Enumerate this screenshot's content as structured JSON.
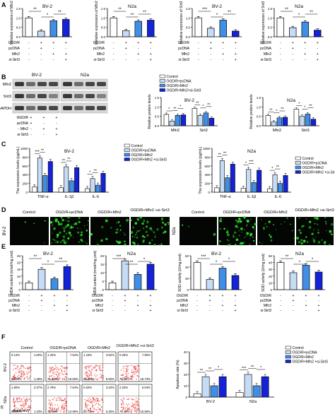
{
  "panel_letters": [
    "A",
    "B",
    "C",
    "D",
    "E",
    "F"
  ],
  "colors": {
    "control": "#ffffff",
    "ogdr_pcdna": "#c6dcf5",
    "ogdr_mfn2": "#3f8fe6",
    "ogdr_mfn2_sisirt3": "#1422d8",
    "stroke": "#000000",
    "microscope_bg": "#030603",
    "fluor_green": "#2ee62e",
    "flow_red": "#e3342f"
  },
  "legend": {
    "items": [
      "Control",
      "OGD/R+pcDNA",
      "OGD/R+Mfn2",
      "OGD/R+Mfn2 +si-Sirt3"
    ]
  },
  "treatment_table": {
    "rows": [
      "OGD/R",
      "pcDNA",
      "Mfn2",
      "si-Sirt3"
    ],
    "signs": [
      [
        "-",
        "+",
        "+",
        "+"
      ],
      [
        "-",
        "+",
        "-",
        "-"
      ],
      [
        "-",
        "-",
        "+",
        "+"
      ],
      [
        "-",
        "-",
        "-",
        "+"
      ]
    ]
  },
  "panelA": {
    "charts": [
      {
        "title": "BV-2",
        "ylabel": "Relative expression of Mfn2",
        "yticks": [
          "0.0",
          "0.5",
          "1.0",
          "1.5"
        ],
        "values": [
          1.0,
          0.3,
          0.85,
          0.92
        ],
        "sig": [
          "**",
          "*",
          "**"
        ]
      },
      {
        "title": "N2a",
        "ylabel": "Relative expression of Mfn2",
        "yticks": [
          "0.0",
          "0.5",
          "1.0",
          "1.5"
        ],
        "values": [
          1.0,
          0.32,
          0.82,
          0.88
        ],
        "sig": [
          "**",
          "**",
          "**"
        ]
      },
      {
        "title": "BV-2",
        "ylabel": "Relative expression of Sirt3",
        "yticks": [
          "0.0",
          "0.5",
          "1.0",
          "1.5"
        ],
        "values": [
          1.0,
          0.45,
          0.88,
          0.3
        ],
        "sig": [
          "***",
          "*",
          "**"
        ]
      },
      {
        "title": "N2a",
        "ylabel": "Relative expression of Sirt3",
        "yticks": [
          "0.0",
          "0.5",
          "1.0",
          "1.5"
        ],
        "values": [
          1.0,
          0.48,
          0.78,
          0.35
        ],
        "sig": [
          "**",
          "*",
          "**"
        ]
      }
    ]
  },
  "panelB": {
    "blot_titles": [
      "BV-2",
      "N2a"
    ],
    "blot_rows": [
      "Mfn2",
      "Sirt3",
      "GAPDH"
    ],
    "legend_items": [
      "Control",
      "OGD/R+pcDNA",
      "OGD/R+Mfn2",
      "OGD/R+Mfn2+si-Sirt3"
    ],
    "charts": [
      {
        "title": "BV-2",
        "ylabel": "Relative protein levels",
        "categories": [
          "Mfn2",
          "Sirt3"
        ],
        "yticks": [
          "0.0",
          "0.5",
          "1.0",
          "1.5"
        ],
        "series": [
          [
            0.6,
            0.92
          ],
          [
            0.25,
            0.55
          ],
          [
            0.55,
            0.68
          ],
          [
            0.58,
            0.4
          ]
        ],
        "sig": [
          "*",
          "**",
          "*",
          "**",
          "*",
          "**"
        ]
      },
      {
        "title": "N2a",
        "ylabel": "Relative protein levels",
        "categories": [
          "Mfn2",
          "Sirt3"
        ],
        "yticks": [
          "0.0",
          "0.5",
          "1.0",
          "1.5"
        ],
        "series": [
          [
            0.55,
            0.88
          ],
          [
            0.2,
            0.5
          ],
          [
            0.42,
            0.62
          ],
          [
            0.45,
            0.35
          ]
        ],
        "sig": [
          "**",
          "*",
          "**",
          "*",
          "*",
          "**"
        ]
      }
    ]
  },
  "panelC": {
    "charts": [
      {
        "title": "BV-2",
        "ylabel": "The expression levels (pg/mL)",
        "categories": [
          "TNF-α",
          "IL-1β",
          "IL-6"
        ],
        "yticks": [
          "0",
          "200",
          "400",
          "600",
          "800",
          "1000"
        ],
        "series": [
          [
            120,
            100,
            80
          ],
          [
            780,
            580,
            310
          ],
          [
            380,
            260,
            160
          ],
          [
            700,
            560,
            430
          ]
        ],
        "sig": [
          "***",
          "**",
          "**",
          "**",
          "*",
          "**"
        ],
        "legend": [
          "Control",
          "OGD/R+pcDNA",
          "OGD/R+Mfn2",
          "OGD/R+Mfn2 +si-Sirt3"
        ]
      },
      {
        "title": "N2a",
        "ylabel": "The expression levels (pg/mL)",
        "categories": [
          "TNF-α",
          "IL-1β",
          "IL-6"
        ],
        "yticks": [
          "0",
          "200",
          "400",
          "600",
          "800",
          "1000"
        ],
        "series": [
          [
            100,
            90,
            80
          ],
          [
            720,
            520,
            400
          ],
          [
            330,
            220,
            200
          ],
          [
            640,
            500,
            380
          ]
        ],
        "sig": [
          "**",
          "**",
          "*",
          "***",
          "*",
          "**"
        ],
        "legend": [
          "Control",
          "OGD/R+pcDNA",
          "OGD/R+Mfn2",
          "OGD/R+Mfn2 +si-Sirt3"
        ]
      }
    ]
  },
  "panelD": {
    "labels_left": [
      "Control",
      "OGD/R+pcDNA",
      "OGD/R+Mfn2",
      "OGD/R+Mfn2 +si-Sirt3"
    ],
    "labels_right": [
      "Control",
      "OGD/R+pcDNA",
      "OGD/R+Mfn2",
      "OGD/R+Mfn2 +si-Sirt3"
    ],
    "row_left": "BV-2",
    "row_right": "N2a"
  },
  "panelE": {
    "charts": [
      {
        "title": "BV-2",
        "ylabel": "MDA content (nmol/mg prot)",
        "yticks": [
          "0",
          "5",
          "10",
          "15",
          "20",
          "25"
        ],
        "values": [
          5,
          15,
          8,
          17
        ],
        "sig": [
          "**",
          "*",
          "**"
        ]
      },
      {
        "title": "N2a",
        "ylabel": "MDA content (nmol/mg prot)",
        "yticks": [
          "0",
          "5",
          "10",
          "15",
          "20"
        ],
        "values": [
          4,
          17,
          9,
          15
        ],
        "sig": [
          "***",
          "**",
          "*"
        ]
      },
      {
        "title": "BV-2",
        "ylabel": "SOD activity (U/mg prot)",
        "yticks": [
          "0",
          "20",
          "40",
          "60"
        ],
        "values": [
          48,
          18,
          38,
          25
        ],
        "sig": [
          "***",
          "*",
          "*"
        ]
      },
      {
        "title": "N2a",
        "ylabel": "SOD activity (U/mg prot)",
        "yticks": [
          "0",
          "10",
          "20",
          "30",
          "40",
          "50"
        ],
        "values": [
          40,
          25,
          36,
          26
        ],
        "sig": [
          "**",
          "*",
          "*"
        ]
      }
    ]
  },
  "panelF": {
    "col_labels": [
      "Control",
      "OGD/R+pcDNA",
      "OGD/R+Mfn2",
      "OGD/R+Mfn2 +si-Sirt3"
    ],
    "row_labels": [
      "BV-2",
      "N2a"
    ],
    "x_axis": "AnnexinV",
    "y_axis": "PI",
    "quadrants": [
      [
        [
          "0.13%",
          "1.60%",
          "96.99%",
          "1.28%"
        ],
        [
          "1.32%",
          "7.54%",
          "74.48%",
          "16.66%"
        ],
        [
          "1.18%",
          "3.52%",
          "86.80%",
          "8.50%"
        ],
        [
          "0.26%",
          "7.90%",
          "73.11%",
          "18.73%"
        ]
      ],
      [
        [
          "1.90%",
          "2.37%",
          "94.40%",
          "1.33%"
        ],
        [
          "2.79%",
          "7.64%",
          "76.58%",
          "12.99%"
        ],
        [
          "0.63%",
          "3.34%",
          "89.73%",
          "6.30%"
        ],
        [
          "2.20%",
          "6.04%",
          "76.17%",
          "15.58%"
        ]
      ]
    ],
    "chart": {
      "ylabel": "Apoptosis rate (%)",
      "categories": [
        "BV-2",
        "N2a"
      ],
      "yticks": [
        "0",
        "10",
        "20",
        "30",
        "40"
      ],
      "series": [
        [
          3,
          4
        ],
        [
          18,
          20
        ],
        [
          10,
          10
        ],
        [
          18,
          18
        ]
      ],
      "sig": [
        "**",
        "**",
        "*",
        "***",
        "**",
        "*"
      ],
      "legend": [
        "Control",
        "OGD/R+pcDNA",
        "OGD/R+Mfn2",
        "OGD/R+Mfn2 +si-Sirt3"
      ]
    }
  }
}
